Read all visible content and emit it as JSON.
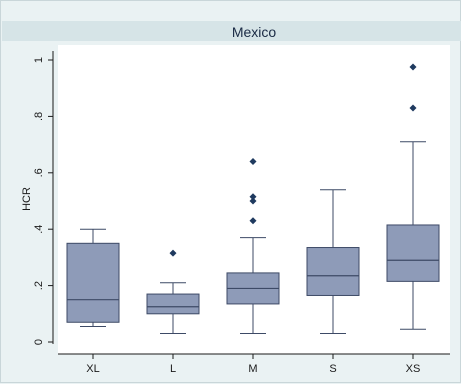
{
  "chart_data": {
    "type": "box",
    "title": "Mexico",
    "ylabel": "HCR",
    "xlabel": "",
    "ylim": [
      0,
      1
    ],
    "yticks": [
      0,
      0.2,
      0.4,
      0.6,
      0.8,
      1
    ],
    "ytick_labels": [
      "0",
      ".2",
      ".4",
      ".6",
      ".8",
      "1"
    ],
    "grid": false,
    "colors": {
      "box_fill": "#8e9bb8",
      "box_stroke": "#3d4a66",
      "outlier": "#1f3a5f",
      "title_band": "#d6e4e7",
      "plot_bg": "#ffffff"
    },
    "categories": [
      "XL",
      "L",
      "M",
      "S",
      "XS"
    ],
    "boxes": [
      {
        "category": "XL",
        "min": 0.055,
        "q1": 0.07,
        "median": 0.15,
        "q3": 0.35,
        "max": 0.4,
        "outliers": []
      },
      {
        "category": "L",
        "min": 0.03,
        "q1": 0.1,
        "median": 0.125,
        "q3": 0.17,
        "max": 0.21,
        "outliers": [
          0.315
        ]
      },
      {
        "category": "M",
        "min": 0.03,
        "q1": 0.135,
        "median": 0.19,
        "q3": 0.245,
        "max": 0.37,
        "outliers": [
          0.43,
          0.5,
          0.515,
          0.64
        ]
      },
      {
        "category": "S",
        "min": 0.03,
        "q1": 0.165,
        "median": 0.235,
        "q3": 0.335,
        "max": 0.54,
        "outliers": []
      },
      {
        "category": "XS",
        "min": 0.045,
        "q1": 0.215,
        "median": 0.29,
        "q3": 0.415,
        "max": 0.71,
        "outliers": [
          0.83,
          0.975
        ]
      }
    ]
  }
}
